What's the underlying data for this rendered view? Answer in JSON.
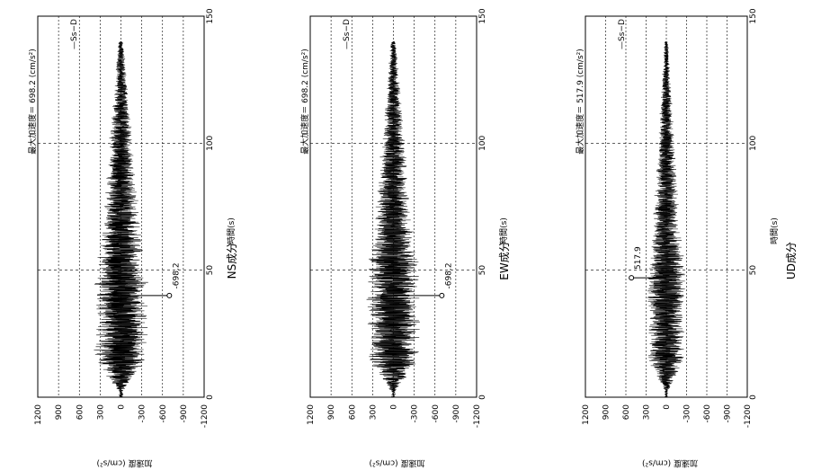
{
  "chart_data": [
    {
      "type": "line",
      "component": "NS",
      "caption": "NS成分",
      "max_label": "最大加速度＝ 698.2 (cm/s²)",
      "legend": "—Ss−D",
      "peak": {
        "time": 40,
        "value": -698.2,
        "label": "-698.2"
      },
      "xlabel": "時間(s)",
      "ylabel": "加速度 (cm/s²)",
      "xlim": [
        0,
        150
      ],
      "ylim": [
        -1200,
        1200
      ],
      "xticks": [
        "0",
        "50",
        "100",
        "150"
      ],
      "yticks": [
        "1200",
        "900",
        "600",
        "300",
        "0",
        "-300",
        "-600",
        "-900",
        "-1200"
      ],
      "grid": true,
      "legend_position": "top-right"
    },
    {
      "type": "line",
      "component": "EW",
      "caption": "EW成分",
      "max_label": "最大加速度＝ 698.2 (cm/s²)",
      "legend": "—Ss−D",
      "peak": {
        "time": 40,
        "value": -698.2,
        "label": "-698.2"
      },
      "xlabel": "時間(s)",
      "ylabel": "加速度 (cm/s²)",
      "xlim": [
        0,
        150
      ],
      "ylim": [
        -1200,
        1200
      ],
      "xticks": [
        "0",
        "50",
        "100",
        "150"
      ],
      "yticks": [
        "1200",
        "900",
        "600",
        "300",
        "0",
        "-300",
        "-600",
        "-900",
        "-1200"
      ],
      "grid": true,
      "legend_position": "top-right"
    },
    {
      "type": "line",
      "component": "UD",
      "caption": "UD成分",
      "max_label": "最大加速度＝ 517.9 (cm/s²)",
      "legend": "—Ss−D",
      "peak": {
        "time": 47,
        "value": 517.9,
        "label": "517.9"
      },
      "xlabel": "時間(s)",
      "ylabel": "加速度 (cm/s²)",
      "xlim": [
        0,
        150
      ],
      "ylim": [
        -1200,
        1200
      ],
      "xticks": [
        "0",
        "50",
        "100",
        "150"
      ],
      "yticks": [
        "1200",
        "900",
        "600",
        "300",
        "0",
        "-300",
        "-600",
        "-900",
        "-1200"
      ],
      "grid": true,
      "legend_position": "top-right"
    }
  ]
}
